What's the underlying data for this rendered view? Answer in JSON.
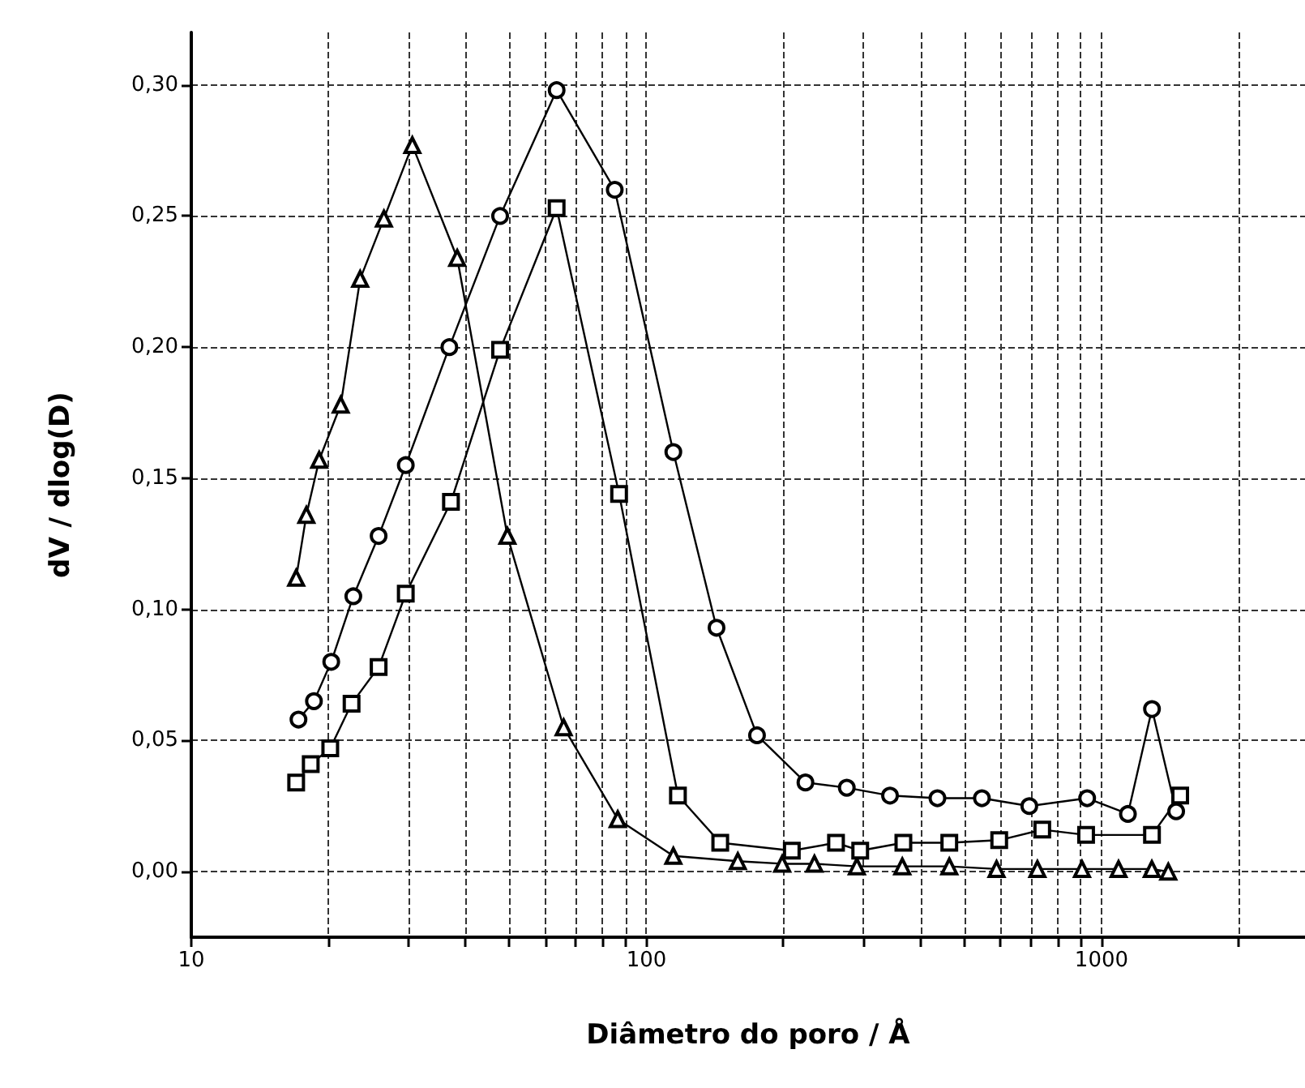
{
  "chart_data": {
    "type": "line",
    "xlabel": "Diâmetro do poro / Å",
    "ylabel": "dV / dlog(D)",
    "log": "x",
    "grid": true,
    "line_style": "solid",
    "xlim": [
      10,
      2800
    ],
    "ylim": [
      -0.025,
      0.32
    ],
    "xticks": [
      {
        "value": 10,
        "label": "10"
      },
      {
        "value": 20,
        "label": null
      },
      {
        "value": 30,
        "label": null
      },
      {
        "value": 40,
        "label": null
      },
      {
        "value": 50,
        "label": null
      },
      {
        "value": 60,
        "label": null
      },
      {
        "value": 70,
        "label": null
      },
      {
        "value": 80,
        "label": null
      },
      {
        "value": 90,
        "label": null
      },
      {
        "value": 100,
        "label": "100"
      },
      {
        "value": 200,
        "label": null
      },
      {
        "value": 300,
        "label": null
      },
      {
        "value": 400,
        "label": null
      },
      {
        "value": 500,
        "label": null
      },
      {
        "value": 600,
        "label": null
      },
      {
        "value": 700,
        "label": null
      },
      {
        "value": 800,
        "label": null
      },
      {
        "value": 900,
        "label": null
      },
      {
        "value": 1000,
        "label": "1000"
      },
      {
        "value": 2000,
        "label": null
      }
    ],
    "yticks": [
      {
        "value": 0,
        "label": "0,00"
      },
      {
        "value": 0.05,
        "label": "0,05"
      },
      {
        "value": 0.1,
        "label": "0,10"
      },
      {
        "value": 0.15,
        "label": "0,15"
      },
      {
        "value": 0.2,
        "label": "0,20"
      },
      {
        "value": 0.25,
        "label": "0,25"
      },
      {
        "value": 0.3,
        "label": "0,30"
      }
    ],
    "series": [
      {
        "color": "#000000",
        "marker": "triangle",
        "x": [
          17.0,
          17.9,
          19.1,
          21.3,
          23.5,
          26.5,
          30.6,
          38.4,
          49.5,
          65.8,
          86.5,
          114.6,
          158.8,
          198.8,
          234,
          290,
          365,
          463,
          588,
          723,
          906,
          1090,
          1290,
          1402
        ],
        "values": [
          0.112,
          0.136,
          0.157,
          0.178,
          0.226,
          0.249,
          0.277,
          0.234,
          0.128,
          0.055,
          0.02,
          0.006,
          0.004,
          0.003,
          0.003,
          0.002,
          0.002,
          0.002,
          0.001,
          0.001,
          0.001,
          0.001,
          0.001,
          0.0
        ]
      },
      {
        "color": "#000000",
        "marker": "circle",
        "x": [
          17.2,
          18.6,
          20.3,
          22.7,
          25.8,
          29.6,
          36.9,
          47.7,
          63.5,
          85.2,
          114.6,
          142.6,
          175,
          223.6,
          275.6,
          343,
          436,
          546,
          694,
          930,
          1143,
          1291,
          1459
        ],
        "values": [
          0.058,
          0.065,
          0.08,
          0.105,
          0.128,
          0.155,
          0.2,
          0.25,
          0.298,
          0.26,
          0.16,
          0.093,
          0.052,
          0.034,
          0.032,
          0.029,
          0.028,
          0.028,
          0.025,
          0.028,
          0.022,
          0.062,
          0.023
        ]
      },
      {
        "color": "#000000",
        "marker": "square",
        "x": [
          17.0,
          18.3,
          20.2,
          22.5,
          25.8,
          29.6,
          37.2,
          47.7,
          63.5,
          87.1,
          117.3,
          145.3,
          208.7,
          261,
          295,
          367,
          463,
          596,
          741,
          925,
          1291,
          1489
        ],
        "values": [
          0.034,
          0.041,
          0.047,
          0.064,
          0.078,
          0.106,
          0.141,
          0.199,
          0.253,
          0.144,
          0.029,
          0.011,
          0.008,
          0.011,
          0.008,
          0.011,
          0.011,
          0.012,
          0.016,
          0.014,
          0.014,
          0.029
        ]
      }
    ]
  }
}
